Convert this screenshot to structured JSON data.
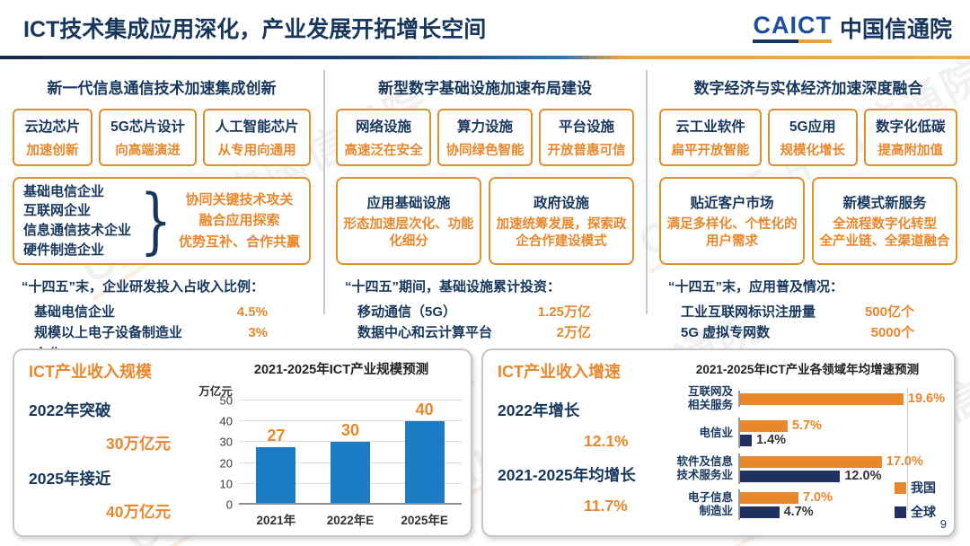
{
  "colors": {
    "navy": "#17375D",
    "orange": "#E8872B",
    "bar_blue": "#1B7CC4",
    "bar_navy": "#1F3061"
  },
  "header": {
    "title": "ICT技术集成应用深化，产业发展开拓增长空间",
    "logo_en": "CAICT",
    "logo_cn": "中国信通院"
  },
  "watermark": "CAICT 中国信通院",
  "page_number": "9",
  "columns": [
    {
      "title": "新一代信息通信技术加速集成创新",
      "chips": [
        {
          "title": "云边芯片",
          "subtitle": "加速创新"
        },
        {
          "title": "5G芯片设计",
          "subtitle": "向高端演进"
        },
        {
          "title": "人工智能芯片",
          "subtitle": "从专用向通用"
        }
      ],
      "group": {
        "items": [
          "基础电信企业",
          "互联网企业",
          "信息通信技术企业",
          "硬件制造企业"
        ],
        "brace": "}",
        "lines": [
          "协同关键技术攻关",
          "融合应用探索",
          "优势互补、合作共赢"
        ]
      },
      "stats": {
        "caption": "“十四五”末，企业研发投入占收入比例：",
        "rows": [
          {
            "label": "基础电信企业",
            "value": "4.5%"
          },
          {
            "label": "规模以上电子设备制造业企业",
            "value": "3%"
          }
        ]
      }
    },
    {
      "title": "新型数字基础设施加速布局建设",
      "chips": [
        {
          "title": "网络设施",
          "subtitle": "高速泛在安全"
        },
        {
          "title": "算力设施",
          "subtitle": "协同绿色智能"
        },
        {
          "title": "平台设施",
          "subtitle": "开放普惠可信"
        }
      ],
      "boxes": [
        {
          "title": "应用基础设施",
          "body": [
            "形态加速层次化、功能化细分"
          ]
        },
        {
          "title": "政府设施",
          "body": [
            "加速统筹发展，探索政企合作建设模式"
          ]
        }
      ],
      "stats": {
        "caption": "“十四五”期间，基础设施累计投资：",
        "rows": [
          {
            "label": "移动通信（5G）",
            "value": "1.25万亿"
          },
          {
            "label": "数据中心和云计算平台",
            "value": "2万亿"
          }
        ]
      }
    },
    {
      "title": "数字经济与实体经济加速深度融合",
      "chips": [
        {
          "title": "云工业软件",
          "subtitle": "扁平开放智能"
        },
        {
          "title": "5G应用",
          "subtitle": "规模化增长"
        },
        {
          "title": "数字化低碳",
          "subtitle": "提高附加值"
        }
      ],
      "boxes": [
        {
          "title": "贴近客户市场",
          "body": [
            "满足多样化、个性化的用户需求"
          ]
        },
        {
          "title": "新模式新服务",
          "body": [
            "全流程数字化转型",
            "全产业链、全渠道融合"
          ]
        }
      ],
      "stats": {
        "caption": "“十四五”末，应用普及情况：",
        "rows": [
          {
            "label": "工业互联网标识注册量",
            "value": "500亿个"
          },
          {
            "label": "5G 虚拟专网数",
            "value": "5000个"
          }
        ]
      }
    }
  ],
  "bottom_left": {
    "panel_title": "ICT产业收入规模",
    "highlights": [
      {
        "label": "2022年突破",
        "value": "30万亿元"
      },
      {
        "label": "2025年接近",
        "value": "40万亿元"
      }
    ]
  },
  "bottom_right": {
    "panel_title": "ICT产业收入增速",
    "highlights": [
      {
        "label": "2022年增长",
        "value": "12.1%"
      },
      {
        "label": "2021-2025年均增长",
        "value": "11.7%"
      }
    ]
  },
  "chart_data": [
    {
      "type": "bar",
      "title": "2021-2025年ICT产业规模预测",
      "xlabel": "",
      "ylabel": "万亿元",
      "categories": [
        "2021年",
        "2022年E",
        "2025年E"
      ],
      "values": [
        27,
        30,
        40
      ],
      "ylim": [
        0,
        50
      ],
      "yticks": [
        0,
        10,
        20,
        30,
        40,
        50
      ],
      "grid": true,
      "bar_color": "#1B7CC4",
      "label_color": "#E8872B"
    },
    {
      "type": "bar-horizontal",
      "title": "2021-2025年ICT产业各领域年均增速预测",
      "categories": [
        "互联网及相关服务",
        "电信业",
        "软件及信息技术服务业",
        "电子信息制造业"
      ],
      "categories_lines": [
        [
          "互联网及",
          "相关服务"
        ],
        [
          "电信业",
          ""
        ],
        [
          "软件及信息",
          "技术服务业"
        ],
        [
          "电子信息",
          "制造业"
        ]
      ],
      "series": [
        {
          "name": "我国",
          "color": "#E8872B",
          "values": [
            19.6,
            5.7,
            17.0,
            7.0
          ],
          "display": [
            "19.6%",
            "5.7%",
            "17.0%",
            "7.0%"
          ]
        },
        {
          "name": "全球",
          "color": "#1F3061",
          "values": [
            null,
            1.4,
            12.0,
            4.7
          ],
          "display": [
            "",
            "1.4%",
            "12.0%",
            "4.7%"
          ]
        }
      ],
      "xlim": [
        0,
        25
      ],
      "gridline_at": 20,
      "legend_position": "bottom-right"
    }
  ]
}
